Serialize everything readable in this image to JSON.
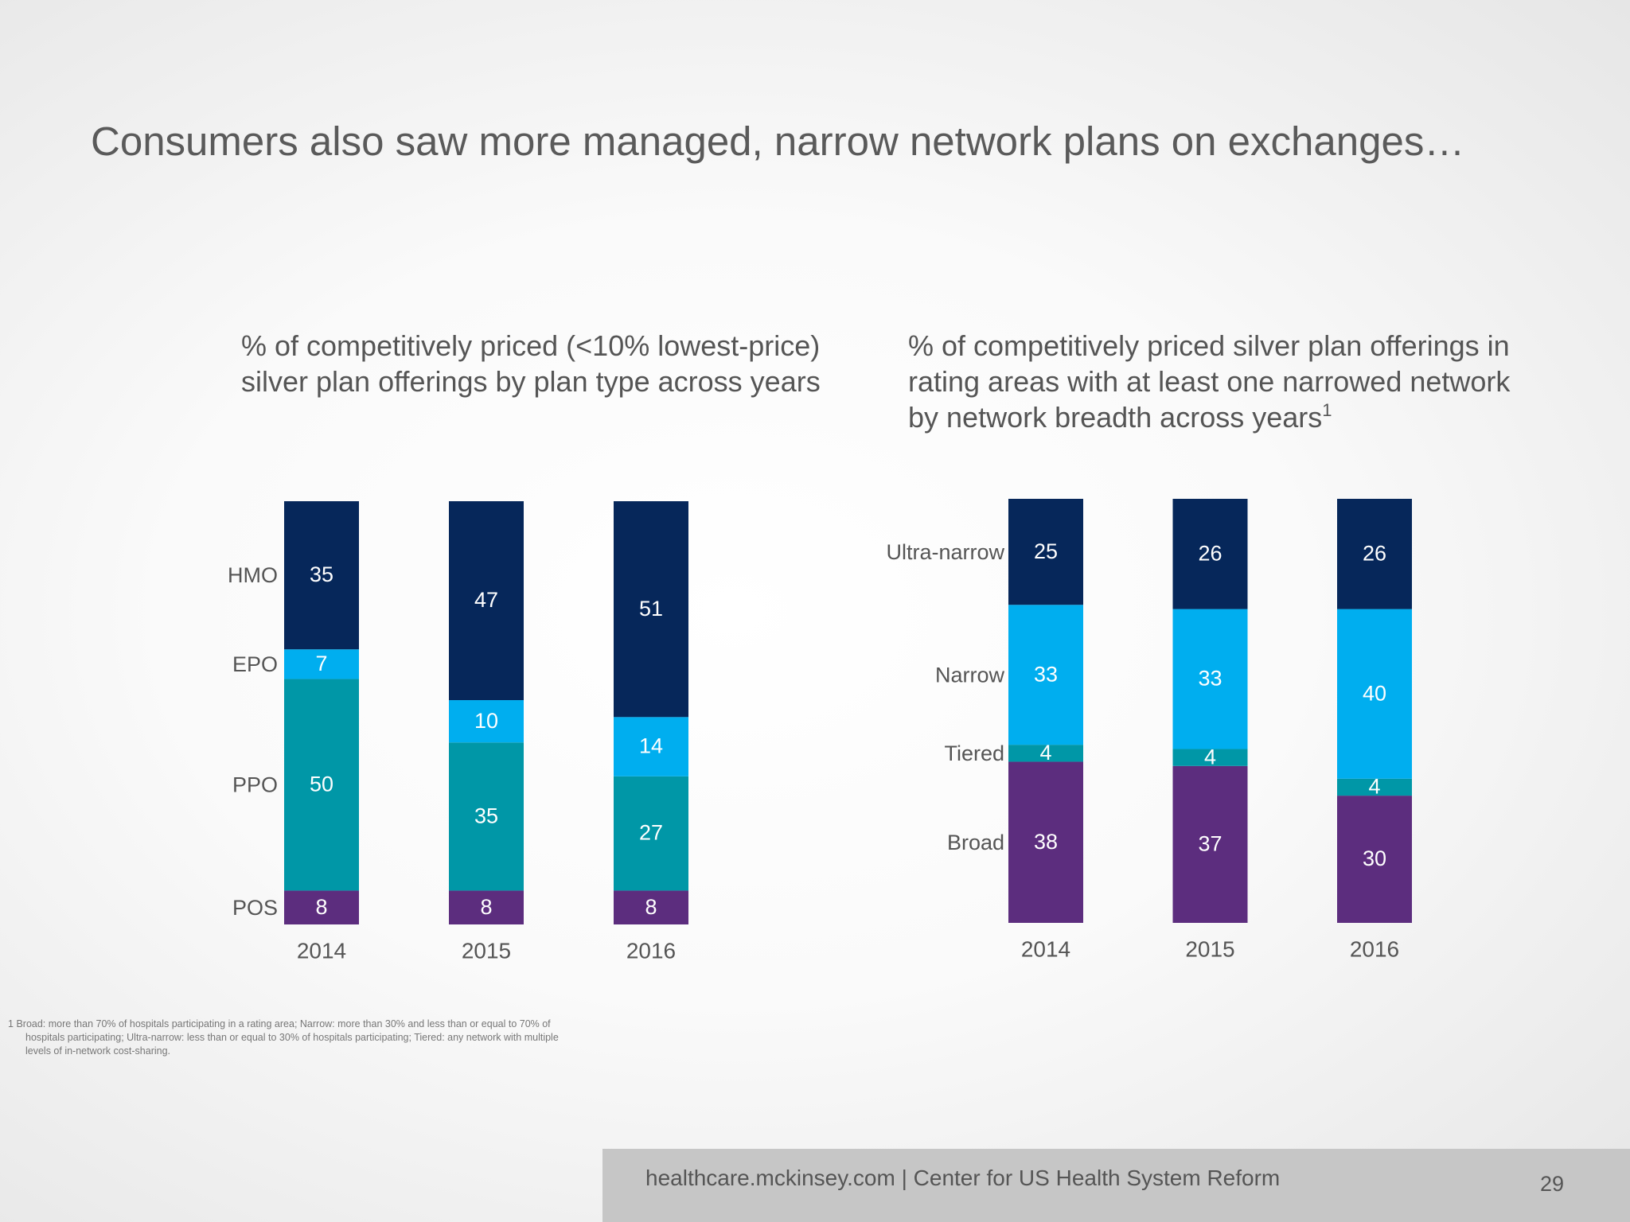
{
  "title": "Consumers also saw more managed, narrow network plans on exchanges…",
  "chart_data": [
    {
      "type": "bar",
      "stacked": true,
      "title": "% of competitively priced (<10% lowest-price) silver plan offerings by plan type across years",
      "categories": [
        "2014",
        "2015",
        "2016"
      ],
      "ylim": [
        0,
        100
      ],
      "series": [
        {
          "name": "POS",
          "color": "#5c2d7e",
          "values": [
            8,
            8,
            8
          ]
        },
        {
          "name": "PPO",
          "color": "#0097a7",
          "values": [
            50,
            35,
            27
          ]
        },
        {
          "name": "EPO",
          "color": "#00aeef",
          "values": [
            7,
            10,
            14
          ]
        },
        {
          "name": "HMO",
          "color": "#06275a",
          "values": [
            35,
            47,
            51
          ]
        }
      ]
    },
    {
      "type": "bar",
      "stacked": true,
      "title": "% of competitively priced silver plan offerings in rating areas with at least one narrowed network by network breadth across years",
      "title_note": "1",
      "categories": [
        "2014",
        "2015",
        "2016"
      ],
      "ylim": [
        0,
        100
      ],
      "series": [
        {
          "name": "Broad",
          "color": "#5c2d7e",
          "values": [
            38,
            37,
            30
          ]
        },
        {
          "name": "Tiered",
          "color": "#0097a7",
          "values": [
            4,
            4,
            4
          ]
        },
        {
          "name": "Narrow",
          "color": "#00aeef",
          "values": [
            33,
            33,
            40
          ]
        },
        {
          "name": "Ultra-narrow",
          "color": "#06275a",
          "values": [
            25,
            26,
            26
          ]
        }
      ]
    }
  ],
  "footnote": {
    "marker": "1",
    "text": "Broad: more than 70% of hospitals participating in a rating area; Narrow: more than 30% and less than or equal to 70% of hospitals participating; Ultra-narrow: less than or equal to 30% of hospitals participating; Tiered: any network with multiple levels of in-network cost-sharing."
  },
  "footer": {
    "text": "healthcare.mckinsey.com | Center for US Health System Reform",
    "page": "29"
  }
}
